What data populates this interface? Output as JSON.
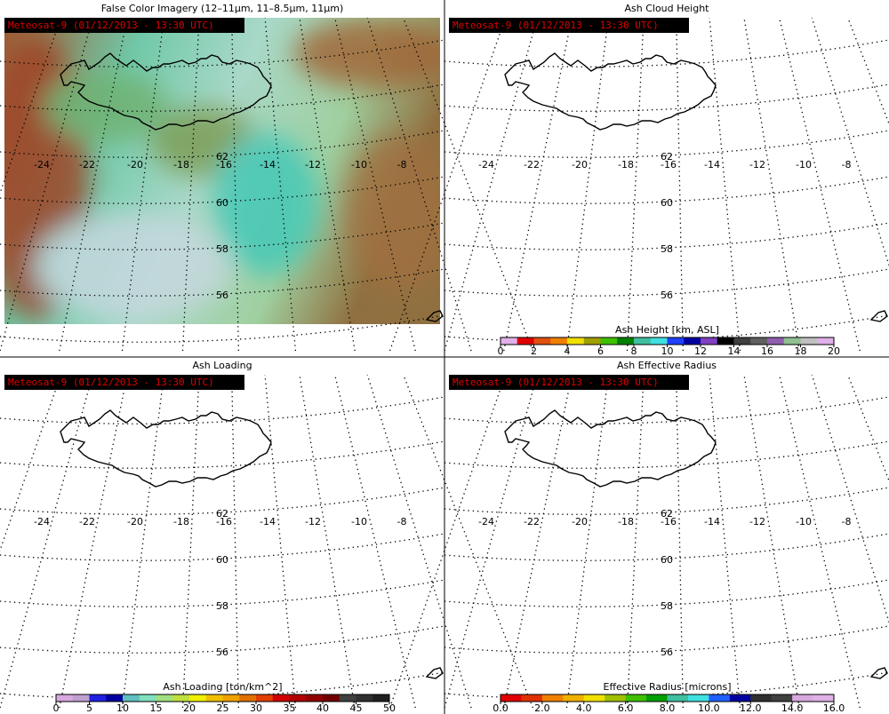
{
  "timestamp": "Meteosat-9  (01/12/2013 - 13:30 UTC)",
  "map_grid": {
    "longitudes": [
      "-24",
      "-22",
      "-20",
      "-18",
      "-16",
      "-14",
      "-12",
      "-10",
      "-8"
    ],
    "latitudes": [
      "62",
      "60",
      "58",
      "56"
    ]
  },
  "panels": [
    {
      "title": "False Color Imagery (12–11μm, 11–8.5μm, 11μm)"
    },
    {
      "title": "Ash Cloud Height",
      "colorbar": {
        "label": "Ash Height [km, ASL]",
        "ticks": [
          "0",
          "2",
          "4",
          "6",
          "8",
          "10",
          "12",
          "14",
          "16",
          "18",
          "20"
        ],
        "colors": [
          "#e0b0e8",
          "#e00000",
          "#e05010",
          "#f08000",
          "#f0e000",
          "#a0a000",
          "#40c000",
          "#008000",
          "#40c0a0",
          "#40e0e0",
          "#2040ff",
          "#0000a0",
          "#8040c0",
          "#000000",
          "#404040",
          "#606060",
          "#9060b0",
          "#90c090",
          "#c0c0c0",
          "#e0b0e8"
        ]
      }
    },
    {
      "title": "Ash Loading",
      "colorbar": {
        "label": "Ash Loading [ton/km^2]",
        "ticks": [
          "0",
          "5",
          "10",
          "15",
          "20",
          "25",
          "30",
          "35",
          "40",
          "45",
          "50"
        ],
        "colors": [
          "#d8a8e0",
          "#c0a0d0",
          "#2020e0",
          "#0000a0",
          "#60c0c0",
          "#80e0c0",
          "#a0e080",
          "#c0e040",
          "#f0f000",
          "#f0c000",
          "#f0a000",
          "#e07000",
          "#e04000",
          "#d00000",
          "#b00000",
          "#900000",
          "#700000",
          "#404040",
          "#303030",
          "#202020"
        ]
      }
    },
    {
      "title": "Ash Effective Radius",
      "colorbar": {
        "label": "Effective Radius [microns]",
        "ticks": [
          "0.0",
          "2.0",
          "4.0",
          "6.0",
          "8.0",
          "10.0",
          "12.0",
          "14.0",
          "16.0"
        ],
        "colors": [
          "#e00000",
          "#e03000",
          "#f08000",
          "#f0b000",
          "#f0e000",
          "#a0c000",
          "#40c000",
          "#00a000",
          "#40c0a0",
          "#40e0e0",
          "#2060ff",
          "#0000a0",
          "#303030",
          "#404040",
          "#d8a8e0",
          "#e0b0e8"
        ]
      }
    }
  ]
}
